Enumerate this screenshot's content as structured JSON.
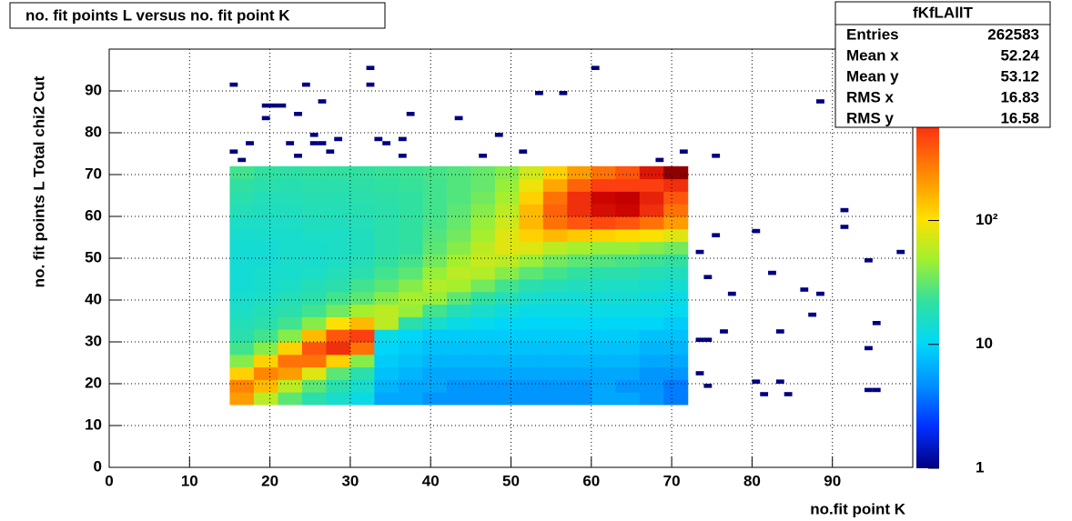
{
  "chart_data": {
    "type": "heatmap",
    "title": "no. fit points L versus no. fit point K",
    "xlabel": "no.fit point K",
    "ylabel": "no. fit points  L   Total chi2 Cut",
    "xlim": [
      0,
      100
    ],
    "ylim": [
      0,
      100
    ],
    "xticks": [
      0,
      10,
      20,
      30,
      40,
      50,
      60,
      70,
      80,
      90
    ],
    "yticks": [
      0,
      10,
      20,
      30,
      40,
      50,
      60,
      70,
      80,
      90
    ],
    "grid": true,
    "zlim": [
      1,
      2300
    ],
    "zlog": true,
    "zticks": [
      1,
      10,
      {
        "value": 100,
        "label": "10²"
      }
    ],
    "palette": [
      "#000080",
      "#0030ff",
      "#0090ff",
      "#00d8f8",
      "#30e0a0",
      "#a0f030",
      "#ffe000",
      "#ff9000",
      "#ff4010",
      "#c80000",
      "#780000"
    ],
    "xbins": [
      15,
      18,
      21,
      24,
      27,
      30,
      33,
      36,
      39,
      42,
      45,
      48,
      51,
      54,
      57,
      60,
      63,
      66,
      69,
      72
    ],
    "ybins": [
      15,
      18,
      21,
      24,
      27,
      30,
      33,
      36,
      39,
      42,
      45,
      48,
      51,
      54,
      57,
      60,
      63,
      66,
      69,
      72
    ],
    "values": [
      [
        200,
        60,
        30,
        20,
        15,
        12,
        6,
        6,
        5,
        5,
        5,
        5,
        5,
        5,
        5,
        6,
        6,
        5,
        4
      ],
      [
        250,
        150,
        60,
        30,
        20,
        15,
        7,
        6,
        6,
        5,
        5,
        5,
        5,
        5,
        5,
        6,
        5,
        5,
        4
      ],
      [
        120,
        250,
        200,
        80,
        30,
        20,
        8,
        7,
        6,
        6,
        6,
        6,
        6,
        6,
        6,
        6,
        6,
        5,
        5
      ],
      [
        40,
        120,
        300,
        300,
        120,
        40,
        9,
        8,
        7,
        7,
        7,
        7,
        7,
        7,
        7,
        7,
        7,
        6,
        6
      ],
      [
        25,
        40,
        120,
        400,
        600,
        300,
        10,
        9,
        8,
        8,
        8,
        8,
        8,
        8,
        8,
        8,
        8,
        7,
        7
      ],
      [
        20,
        25,
        40,
        150,
        400,
        500,
        12,
        10,
        9,
        9,
        9,
        9,
        9,
        9,
        9,
        9,
        9,
        8,
        8
      ],
      [
        18,
        20,
        25,
        40,
        100,
        150,
        60,
        20,
        15,
        12,
        11,
        10,
        10,
        10,
        10,
        10,
        10,
        10,
        9
      ],
      [
        16,
        18,
        20,
        25,
        35,
        50,
        60,
        45,
        25,
        18,
        15,
        13,
        12,
        12,
        12,
        12,
        12,
        12,
        11
      ],
      [
        15,
        16,
        18,
        20,
        25,
        30,
        40,
        50,
        45,
        30,
        22,
        18,
        15,
        14,
        14,
        14,
        14,
        13,
        12
      ],
      [
        14,
        15,
        16,
        18,
        20,
        25,
        30,
        40,
        55,
        50,
        35,
        25,
        20,
        18,
        17,
        16,
        16,
        15,
        14
      ],
      [
        14,
        15,
        15,
        16,
        18,
        20,
        25,
        30,
        45,
        60,
        55,
        40,
        30,
        25,
        22,
        20,
        20,
        18,
        17
      ],
      [
        14,
        14,
        15,
        15,
        16,
        18,
        22,
        25,
        35,
        50,
        65,
        60,
        45,
        35,
        30,
        28,
        26,
        24,
        22
      ],
      [
        14,
        14,
        15,
        15,
        16,
        17,
        20,
        22,
        30,
        40,
        60,
        80,
        80,
        60,
        50,
        45,
        45,
        40,
        35
      ],
      [
        15,
        15,
        15,
        16,
        16,
        17,
        20,
        22,
        28,
        35,
        50,
        80,
        120,
        150,
        130,
        120,
        110,
        100,
        80
      ],
      [
        16,
        16,
        16,
        17,
        17,
        18,
        20,
        22,
        26,
        32,
        45,
        70,
        150,
        300,
        400,
        450,
        400,
        300,
        200
      ],
      [
        18,
        17,
        17,
        18,
        18,
        19,
        20,
        22,
        25,
        30,
        40,
        60,
        150,
        350,
        600,
        900,
        1000,
        600,
        300
      ],
      [
        20,
        18,
        18,
        19,
        19,
        20,
        21,
        22,
        25,
        28,
        35,
        50,
        120,
        300,
        600,
        1000,
        1100,
        700,
        400
      ],
      [
        22,
        20,
        19,
        20,
        20,
        21,
        22,
        23,
        25,
        28,
        32,
        45,
        90,
        180,
        350,
        500,
        500,
        500,
        600
      ],
      [
        25,
        22,
        21,
        22,
        22,
        22,
        23,
        24,
        26,
        28,
        32,
        40,
        70,
        120,
        200,
        300,
        400,
        800,
        1800
      ]
    ],
    "outliers": {
      "count": 1,
      "x": [
        15,
        24,
        32,
        32,
        60,
        19,
        20,
        21,
        19,
        23,
        26,
        37,
        43,
        53,
        56,
        88,
        25,
        28,
        33,
        34,
        36,
        48,
        15,
        16,
        17,
        22,
        23,
        25,
        26,
        27,
        36,
        46,
        51,
        68,
        71,
        75,
        91,
        91,
        73,
        75,
        80,
        74,
        77,
        82,
        86,
        88,
        87,
        94,
        98,
        95,
        76,
        83,
        73,
        74,
        94,
        73,
        74,
        80,
        81,
        83,
        84,
        94,
        95
      ],
      "y": [
        91,
        91,
        95,
        91,
        95,
        86,
        86,
        86,
        83,
        84,
        87,
        84,
        83,
        89,
        89,
        87,
        79,
        78,
        78,
        77,
        78,
        79,
        75,
        73,
        77,
        77,
        74,
        77,
        77,
        75,
        74,
        74,
        75,
        73,
        75,
        74,
        61,
        57,
        51,
        55,
        56,
        45,
        41,
        46,
        42,
        41,
        36,
        49,
        51,
        34,
        32,
        32,
        30,
        30,
        28,
        22,
        19,
        20,
        17,
        20,
        17,
        18,
        18
      ]
    },
    "stats": {
      "title": "fKfLAllT",
      "rows": [
        [
          "Entries",
          "262583"
        ],
        [
          "Mean x",
          "52.24"
        ],
        [
          "Mean y",
          "53.12"
        ],
        [
          "RMS x",
          "16.83"
        ],
        [
          "RMS y",
          "16.58"
        ]
      ]
    }
  }
}
